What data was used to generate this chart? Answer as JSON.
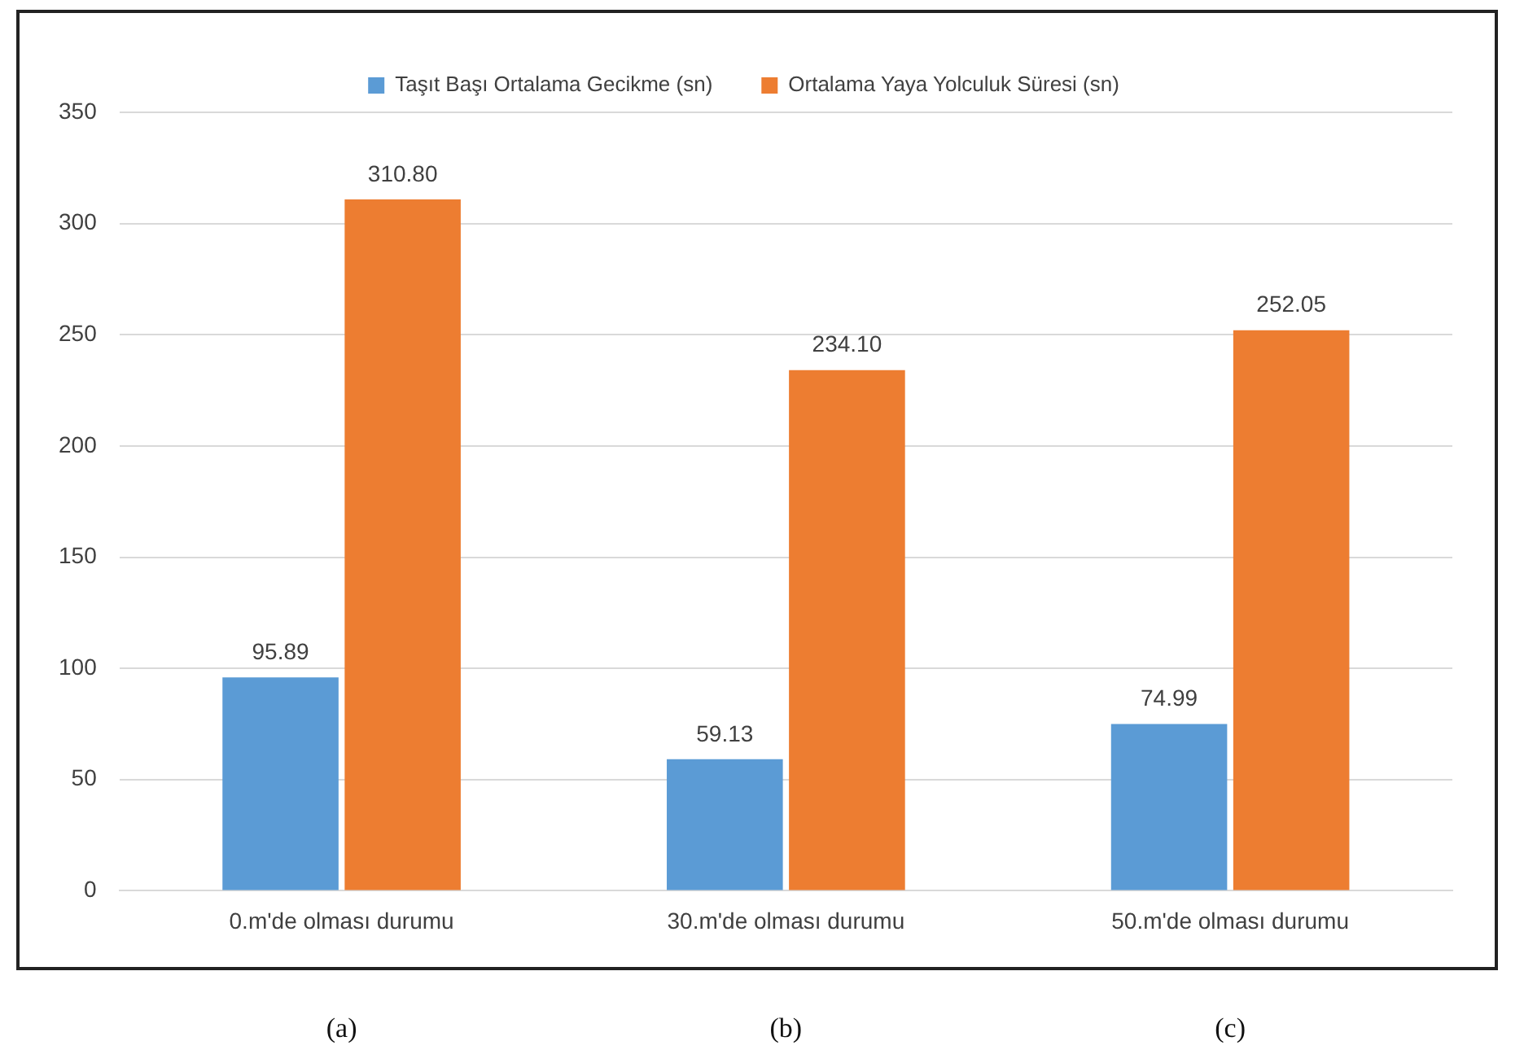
{
  "chart_data": {
    "type": "bar",
    "categories": [
      "0.m'de olması durumu",
      "30.m'de olması durumu",
      "50.m'de olması durumu"
    ],
    "series": [
      {
        "name": "Taşıt Başı Ortalama Gecikme (sn)",
        "color": "#5b9bd5",
        "values": [
          95.89,
          59.13,
          74.99
        ],
        "value_labels": [
          "95.89",
          "59.13",
          "74.99"
        ]
      },
      {
        "name": "Ortalama Yaya Yolculuk Süresi (sn)",
        "color": "#ed7d31",
        "values": [
          310.8,
          234.1,
          252.05
        ],
        "value_labels": [
          "310.80",
          "234.10",
          "252.05"
        ]
      }
    ],
    "ylim": [
      0,
      350
    ],
    "yticks": [
      0,
      50,
      100,
      150,
      200,
      250,
      300,
      350
    ],
    "grid": "y",
    "legend": "top",
    "annotations": [
      "(a)",
      "(b)",
      "(c)"
    ]
  }
}
